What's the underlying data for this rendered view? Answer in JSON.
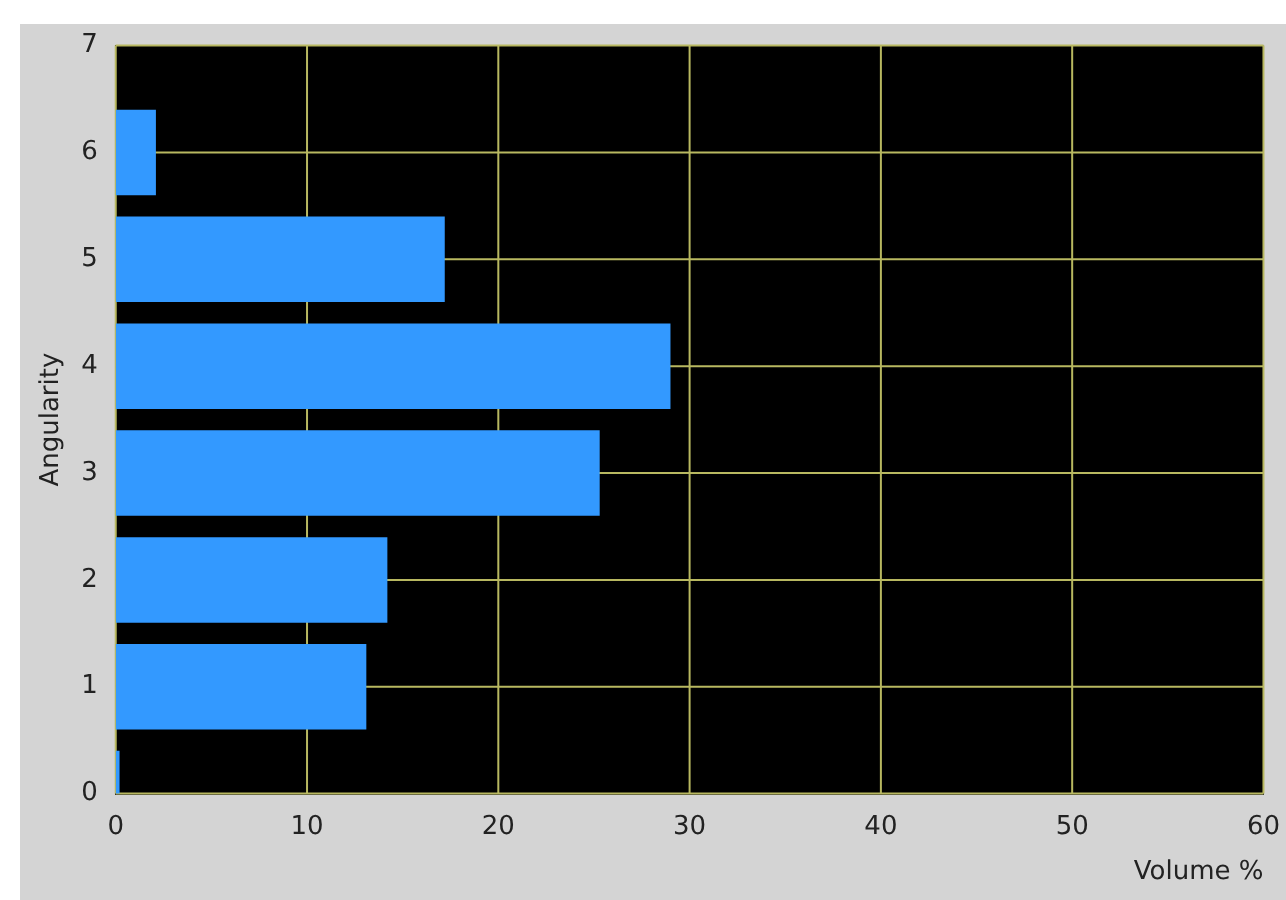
{
  "chart_data": {
    "type": "bar",
    "orientation": "horizontal",
    "xlabel": "Volume %",
    "ylabel": "Angularity",
    "x": [
      0,
      1,
      2,
      3,
      4,
      5,
      6
    ],
    "values": [
      0.2,
      13.1,
      14.2,
      25.3,
      29.0,
      17.2,
      2.1
    ],
    "color": "#3399ff",
    "xlim": [
      0,
      60
    ],
    "xticks": [
      0,
      10,
      20,
      30,
      40,
      50,
      60
    ],
    "ylim": [
      0,
      7
    ],
    "yticks": [
      0,
      1,
      2,
      3,
      4,
      5,
      6,
      7
    ],
    "grid": true,
    "legend": false
  }
}
